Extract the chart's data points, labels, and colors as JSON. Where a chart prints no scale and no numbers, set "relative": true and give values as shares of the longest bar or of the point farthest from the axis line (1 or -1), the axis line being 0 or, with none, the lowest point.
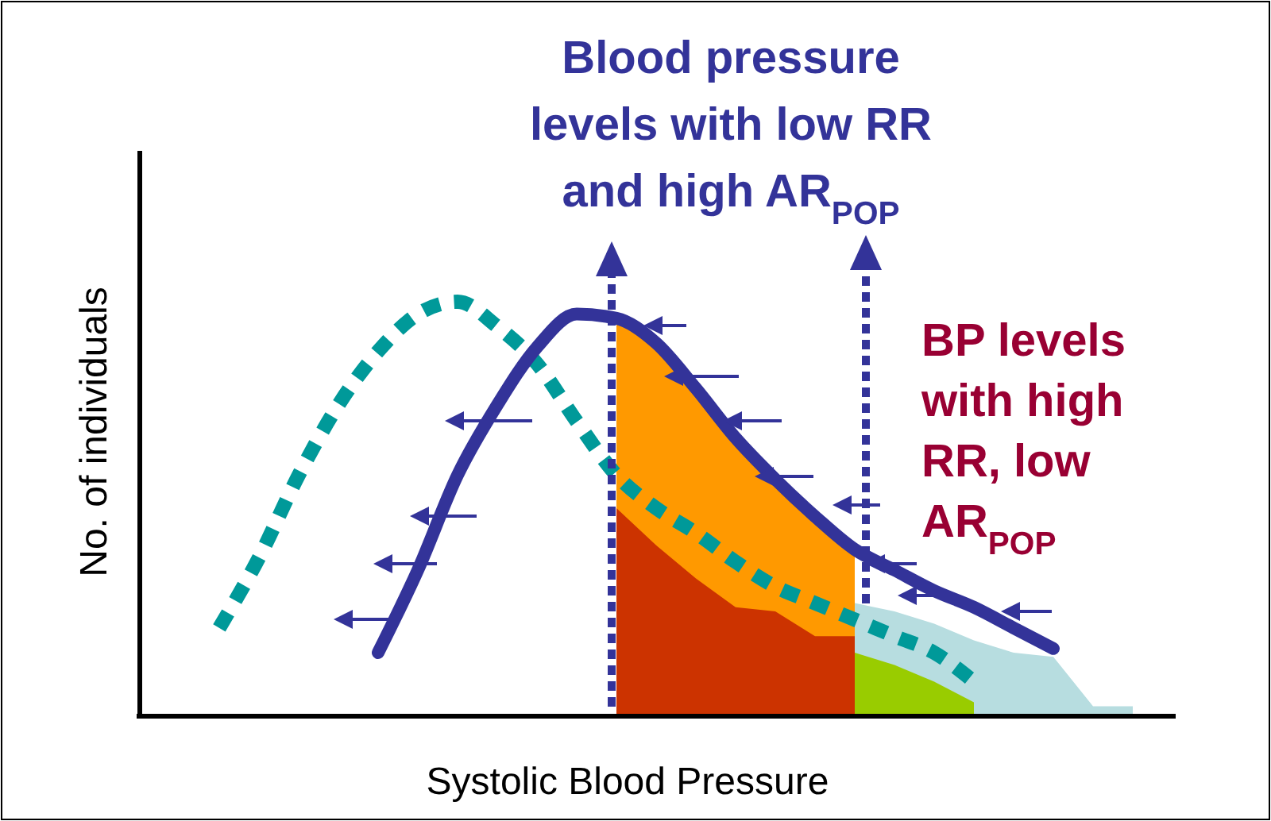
{
  "chart_data": {
    "type": "line",
    "relative": true,
    "xlabel": "Systolic Blood Pressure",
    "ylabel": "No. of individuals",
    "annotations": [
      "Blood pressure levels with low RR and high AR$_{POP}$",
      "BP levels with high RR, low AR$_{POP}$"
    ],
    "categories": [
      null,
      null,
      null,
      null,
      null,
      null,
      null,
      null,
      null,
      null,
      null,
      null,
      null,
      null,
      null,
      null,
      null,
      null,
      null,
      null,
      null,
      null,
      null,
      null,
      null,
      null,
      null
    ],
    "series": [
      {
        "type": "area",
        "color": "#b7dde0",
        "values": [
          null,
          null,
          null,
          null,
          null,
          null,
          null,
          null,
          null,
          null,
          null,
          null,
          null,
          null,
          null,
          null,
          null,
          null,
          0.27,
          0.25,
          0.22,
          0.18,
          0.15,
          0.14,
          0.02,
          0.02,
          null
        ]
      },
      {
        "type": "area",
        "color": "#ff9900",
        "values": [
          null,
          null,
          null,
          null,
          null,
          null,
          null,
          null,
          null,
          null,
          null,
          null,
          0.97,
          0.9,
          0.79,
          0.67,
          0.57,
          0.48,
          0.4,
          null,
          null,
          null,
          null,
          null,
          null,
          null,
          null
        ]
      },
      {
        "type": "area",
        "color": "#cc3300",
        "values": [
          null,
          null,
          null,
          null,
          null,
          null,
          null,
          null,
          null,
          null,
          null,
          null,
          0.5,
          0.41,
          0.33,
          0.26,
          0.25,
          0.19,
          0.19,
          null,
          null,
          null,
          null,
          null,
          null,
          null,
          null
        ]
      },
      {
        "type": "area",
        "color": "#99cc00",
        "values": [
          null,
          null,
          null,
          null,
          null,
          null,
          null,
          null,
          null,
          null,
          null,
          null,
          null,
          null,
          null,
          null,
          null,
          null,
          0.15,
          0.12,
          0.08,
          0.03,
          null,
          null,
          null,
          null,
          null
        ]
      },
      {
        "type": "line",
        "color": "#009999",
        "line_style": "dotted",
        "values": [
          null,
          null,
          0.21,
          0.38,
          0.58,
          0.75,
          0.88,
          0.97,
          1.0,
          0.94,
          0.85,
          0.71,
          0.58,
          0.5,
          0.44,
          0.37,
          0.31,
          0.27,
          0.23,
          0.19,
          0.15,
          0.08,
          null,
          null,
          null,
          null,
          null
        ]
      },
      {
        "type": "line",
        "color": "#333399",
        "line_style": "solid",
        "values": [
          null,
          null,
          null,
          null,
          null,
          null,
          0.15,
          0.35,
          0.58,
          0.75,
          0.89,
          0.97,
          0.96,
          0.9,
          0.79,
          0.67,
          0.57,
          0.48,
          0.4,
          0.35,
          0.3,
          0.26,
          0.21,
          0.16,
          null,
          null,
          null
        ]
      }
    ],
    "marker": "none"
  }
}
